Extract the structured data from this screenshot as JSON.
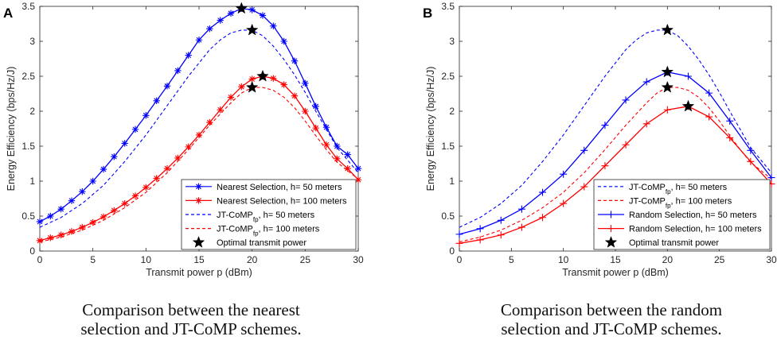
{
  "chart_data": [
    {
      "type": "line",
      "panel_label": "A",
      "xlabel": "Transmit power p (dBm)",
      "ylabel": "Energy Efficiency (bps/Hz/J)",
      "xlim": [
        0,
        30
      ],
      "ylim": [
        0,
        3.5
      ],
      "xticks": [
        0,
        5,
        10,
        15,
        20,
        25,
        30
      ],
      "yticks": [
        0,
        0.5,
        1,
        1.5,
        2,
        2.5,
        3,
        3.5
      ],
      "grid": false,
      "legend_position": "bottom-right",
      "caption": [
        "Comparison between the nearest",
        "selection and JT-CoMP schemes."
      ],
      "series": [
        {
          "name": "Nearest Selection,  h= 50 meters",
          "legend_parts": [
            [
              "Nearest Selection,  h= 50 meters",
              ""
            ]
          ],
          "color": "#0000ff",
          "dash": "solid",
          "marker": "asterisk",
          "x": [
            0,
            1,
            2,
            3,
            4,
            5,
            6,
            7,
            8,
            9,
            10,
            11,
            12,
            13,
            14,
            15,
            16,
            17,
            18,
            19,
            20,
            21,
            22,
            23,
            24,
            25,
            26,
            27,
            28,
            29,
            30
          ],
          "y": [
            0.42,
            0.5,
            0.6,
            0.72,
            0.85,
            1.0,
            1.17,
            1.35,
            1.54,
            1.74,
            1.94,
            2.15,
            2.36,
            2.58,
            2.8,
            3.02,
            3.18,
            3.3,
            3.4,
            3.47,
            3.45,
            3.37,
            3.22,
            3.0,
            2.72,
            2.4,
            2.07,
            1.77,
            1.5,
            1.38,
            1.18
          ]
        },
        {
          "name": "Nearest Selection,  h= 100 meters",
          "legend_parts": [
            [
              "Nearest Selection,  h= 100 meters",
              ""
            ]
          ],
          "color": "#ff0000",
          "dash": "solid",
          "marker": "asterisk",
          "x": [
            0,
            1,
            2,
            3,
            4,
            5,
            6,
            7,
            8,
            9,
            10,
            11,
            12,
            13,
            14,
            15,
            16,
            17,
            18,
            19,
            20,
            21,
            22,
            23,
            24,
            25,
            26,
            27,
            28,
            29,
            30
          ],
          "y": [
            0.15,
            0.19,
            0.23,
            0.28,
            0.34,
            0.41,
            0.49,
            0.58,
            0.68,
            0.79,
            0.91,
            1.04,
            1.18,
            1.33,
            1.49,
            1.66,
            1.84,
            2.02,
            2.2,
            2.35,
            2.46,
            2.5,
            2.47,
            2.38,
            2.22,
            2.0,
            1.76,
            1.52,
            1.32,
            1.18,
            1.02
          ]
        },
        {
          "name": "JT-CoMPfp, h= 50 meters",
          "legend_parts": [
            [
              "JT-CoMP",
              ""
            ],
            [
              "fp",
              "sub"
            ],
            [
              ", h= 50 meters",
              ""
            ]
          ],
          "color": "#0000ff",
          "dash": "dashed",
          "marker": "none",
          "x": [
            0,
            2,
            4,
            6,
            8,
            10,
            12,
            14,
            16,
            17,
            18,
            19,
            20,
            21,
            22,
            23,
            24,
            25,
            26,
            27,
            28,
            29,
            30
          ],
          "y": [
            0.34,
            0.48,
            0.68,
            0.94,
            1.28,
            1.66,
            2.08,
            2.5,
            2.88,
            3.02,
            3.12,
            3.16,
            3.16,
            3.08,
            2.93,
            2.74,
            2.52,
            2.27,
            2.0,
            1.74,
            1.48,
            1.3,
            1.12
          ]
        },
        {
          "name": "JT-CoMPfp, h= 100 meters",
          "legend_parts": [
            [
              "JT-CoMP",
              ""
            ],
            [
              "fp",
              "sub"
            ],
            [
              ", h= 100 meters",
              ""
            ]
          ],
          "color": "#ff0000",
          "dash": "dashed",
          "marker": "none",
          "x": [
            0,
            2,
            4,
            6,
            8,
            10,
            12,
            14,
            16,
            18,
            19,
            20,
            21,
            22,
            23,
            24,
            25,
            26,
            27,
            28,
            29,
            30
          ],
          "y": [
            0.13,
            0.2,
            0.3,
            0.44,
            0.62,
            0.84,
            1.12,
            1.45,
            1.8,
            2.12,
            2.26,
            2.34,
            2.34,
            2.3,
            2.2,
            2.05,
            1.86,
            1.65,
            1.45,
            1.27,
            1.15,
            1.03
          ]
        },
        {
          "name": "Optimal transmit power",
          "legend_parts": [
            [
              "Optimal transmit power",
              ""
            ]
          ],
          "color": "#000000",
          "dash": "none",
          "marker": "star",
          "x": [
            19,
            20,
            21,
            20
          ],
          "y": [
            3.47,
            3.16,
            2.5,
            2.34
          ]
        }
      ]
    },
    {
      "type": "line",
      "panel_label": "B",
      "xlabel": "Transmit power p (dBm)",
      "ylabel": "Energy Efficiency (bps/Hz/J)",
      "xlim": [
        0,
        30
      ],
      "ylim": [
        0,
        3.5
      ],
      "xticks": [
        0,
        5,
        10,
        15,
        20,
        25,
        30
      ],
      "yticks": [
        0,
        0.5,
        1,
        1.5,
        2,
        2.5,
        3,
        3.5
      ],
      "grid": false,
      "legend_position": "bottom-right",
      "caption": [
        "Comparison between the random",
        "selection and JT-CoMP schemes."
      ],
      "series": [
        {
          "name": "JT-CoMPfp, h= 50 meters",
          "legend_parts": [
            [
              "JT-CoMP",
              ""
            ],
            [
              "fp",
              "sub"
            ],
            [
              ", h= 50 meters",
              ""
            ]
          ],
          "color": "#0000ff",
          "dash": "dashed",
          "marker": "none",
          "x": [
            0,
            2,
            4,
            6,
            8,
            10,
            12,
            14,
            16,
            17,
            18,
            19,
            20,
            21,
            22,
            23,
            24,
            25,
            26,
            27,
            28,
            29,
            30
          ],
          "y": [
            0.34,
            0.48,
            0.68,
            0.94,
            1.28,
            1.66,
            2.08,
            2.5,
            2.88,
            3.02,
            3.12,
            3.16,
            3.16,
            3.08,
            2.93,
            2.74,
            2.52,
            2.27,
            2.0,
            1.74,
            1.48,
            1.3,
            1.12
          ]
        },
        {
          "name": "JT-CoMPfp, h= 100 meters",
          "legend_parts": [
            [
              "JT-CoMP",
              ""
            ],
            [
              "fp",
              "sub"
            ],
            [
              ", h= 100 meters",
              ""
            ]
          ],
          "color": "#ff0000",
          "dash": "dashed",
          "marker": "none",
          "x": [
            0,
            2,
            4,
            6,
            8,
            10,
            12,
            14,
            16,
            18,
            19,
            20,
            21,
            22,
            23,
            24,
            25,
            26,
            27,
            28,
            29,
            30
          ],
          "y": [
            0.13,
            0.2,
            0.3,
            0.44,
            0.62,
            0.84,
            1.12,
            1.45,
            1.8,
            2.12,
            2.26,
            2.34,
            2.34,
            2.3,
            2.2,
            2.05,
            1.86,
            1.65,
            1.45,
            1.27,
            1.15,
            1.03
          ]
        },
        {
          "name": "Random Selection, h= 50 meters",
          "legend_parts": [
            [
              "Random Selection, h= 50 meters",
              ""
            ]
          ],
          "color": "#0000ff",
          "dash": "solid",
          "marker": "plus",
          "x": [
            0,
            2,
            4,
            6,
            8,
            10,
            12,
            14,
            16,
            18,
            20,
            22,
            24,
            26,
            28,
            30
          ],
          "y": [
            0.24,
            0.32,
            0.44,
            0.6,
            0.84,
            1.1,
            1.44,
            1.8,
            2.16,
            2.42,
            2.56,
            2.5,
            2.26,
            1.86,
            1.44,
            1.05
          ]
        },
        {
          "name": "Random Selection, h= 100 meters",
          "legend_parts": [
            [
              "Random Selection, h= 100 meters",
              ""
            ]
          ],
          "color": "#ff0000",
          "dash": "solid",
          "marker": "plus",
          "x": [
            0,
            2,
            4,
            6,
            8,
            10,
            12,
            14,
            16,
            18,
            20,
            22,
            24,
            26,
            28,
            30
          ],
          "y": [
            0.11,
            0.16,
            0.23,
            0.34,
            0.48,
            0.68,
            0.92,
            1.22,
            1.52,
            1.82,
            2.02,
            2.07,
            1.92,
            1.62,
            1.28,
            0.96
          ]
        },
        {
          "name": "Optimal transmit power",
          "legend_parts": [
            [
              "Optimal transmit power",
              ""
            ]
          ],
          "color": "#000000",
          "dash": "none",
          "marker": "star",
          "x": [
            20,
            20,
            20,
            22
          ],
          "y": [
            3.16,
            2.56,
            2.34,
            2.07
          ]
        }
      ]
    }
  ]
}
